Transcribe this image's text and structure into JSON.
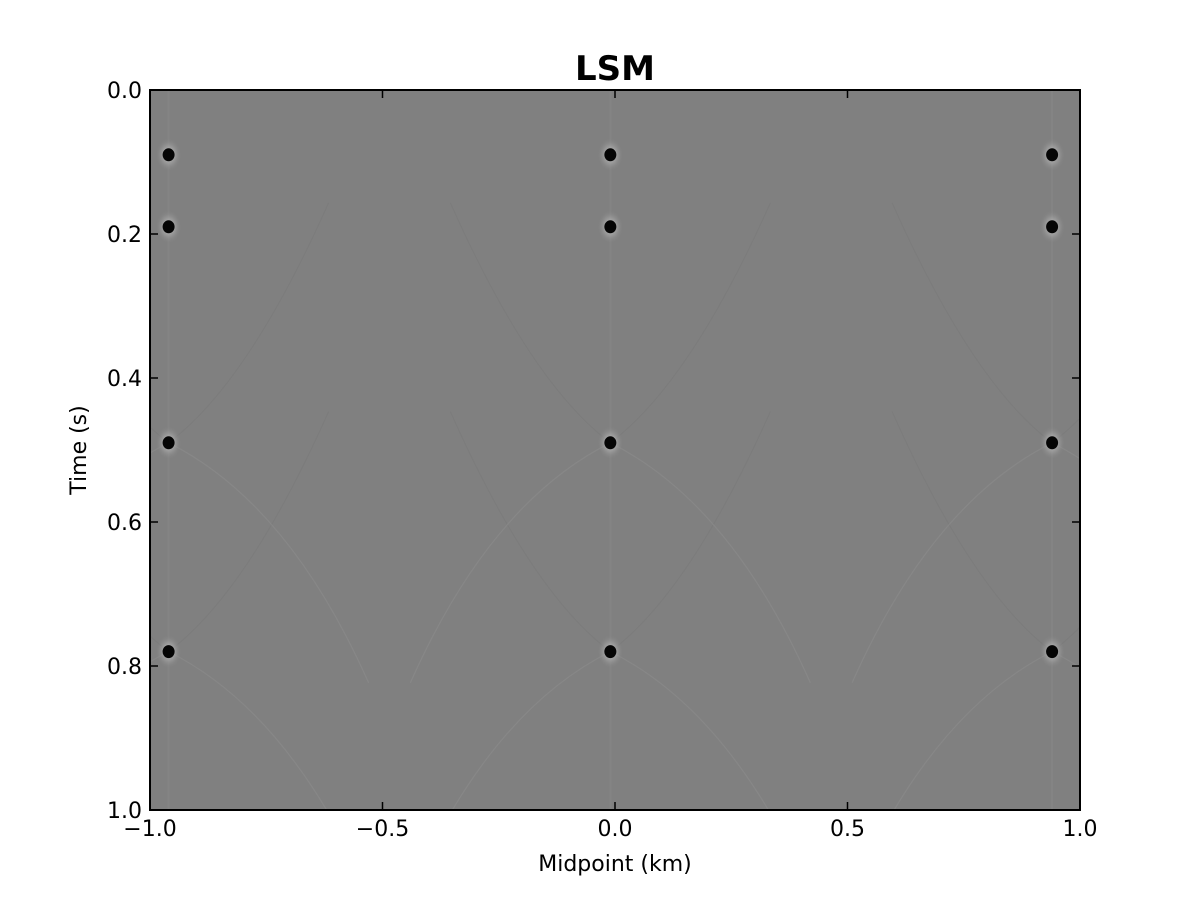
{
  "chart_data": {
    "type": "heatmap",
    "title": "LSM",
    "xlabel": "Midpoint (km)",
    "ylabel": "Time (s)",
    "xlim": [
      -1.0,
      1.0
    ],
    "ylim": [
      1.0,
      0.0
    ],
    "y_axis_inverted": true,
    "colormap": "gray",
    "background_value_color": "#808080",
    "grid": false,
    "x_ticks": [
      -1.0,
      -0.5,
      0.0,
      0.5,
      1.0
    ],
    "x_tick_labels": [
      "−1.0",
      "−0.5",
      "0.0",
      "0.5",
      "1.0"
    ],
    "y_ticks": [
      0.0,
      0.2,
      0.4,
      0.6,
      0.8,
      1.0
    ],
    "y_tick_labels": [
      "0.0",
      "0.2",
      "0.4",
      "0.6",
      "0.8",
      "1.0"
    ],
    "diffractors": [
      {
        "x": -0.96,
        "t": 0.09
      },
      {
        "x": -0.96,
        "t": 0.19
      },
      {
        "x": -0.96,
        "t": 0.49
      },
      {
        "x": -0.96,
        "t": 0.78
      },
      {
        "x": -0.01,
        "t": 0.09
      },
      {
        "x": -0.01,
        "t": 0.19
      },
      {
        "x": -0.01,
        "t": 0.49
      },
      {
        "x": -0.01,
        "t": 0.78
      },
      {
        "x": 0.94,
        "t": 0.09
      },
      {
        "x": 0.94,
        "t": 0.19
      },
      {
        "x": 0.94,
        "t": 0.49
      },
      {
        "x": 0.94,
        "t": 0.78
      }
    ]
  }
}
